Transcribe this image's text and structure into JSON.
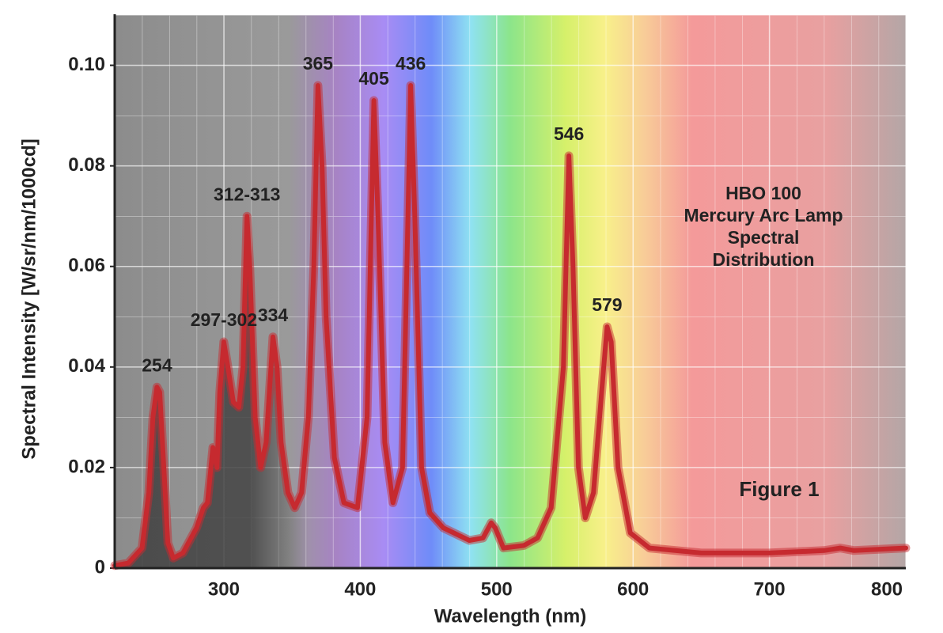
{
  "chart_data": {
    "type": "line",
    "x_label": "Wavelength (nm)",
    "y_label": "Spectral Intensity [W/sr/nm/1000cd]",
    "note": [
      "HBO 100",
      "Mercury Arc Lamp",
      "Spectral",
      "Distribution"
    ],
    "figure_label": "Figure 1",
    "xlim": [
      220,
      800
    ],
    "ylim": [
      0,
      0.11
    ],
    "xticks": [
      300,
      400,
      500,
      600,
      700,
      800
    ],
    "yticks": [
      0,
      0.02,
      0.04,
      0.06,
      0.08,
      {
        "value": 0.1,
        "label": "0.10"
      }
    ],
    "grid": true,
    "x": [
      220,
      230,
      240,
      245,
      248,
      251,
      253,
      256,
      259,
      263,
      270,
      280,
      285,
      288,
      292,
      295,
      297,
      300,
      303,
      307,
      311,
      314,
      317,
      319,
      323,
      327,
      331,
      336,
      339,
      342,
      347,
      352,
      357,
      362,
      366,
      369,
      372,
      375,
      381,
      388,
      398,
      405,
      410,
      413,
      418,
      424,
      431,
      435,
      437,
      440,
      445,
      451,
      461,
      480,
      490,
      496,
      499,
      505,
      520,
      530,
      540,
      549,
      553,
      556,
      560,
      565,
      571,
      577,
      581,
      584,
      589,
      598,
      612,
      650,
      700,
      740,
      752,
      762,
      800
    ],
    "series": [
      {
        "name": "HBO 100",
        "color": "#c62a2f",
        "values": [
          0.0005,
          0.001,
          0.004,
          0.015,
          0.03,
          0.036,
          0.035,
          0.02,
          0.005,
          0.002,
          0.003,
          0.008,
          0.012,
          0.013,
          0.024,
          0.02,
          0.035,
          0.045,
          0.04,
          0.033,
          0.032,
          0.04,
          0.07,
          0.06,
          0.03,
          0.02,
          0.025,
          0.046,
          0.04,
          0.025,
          0.015,
          0.012,
          0.015,
          0.03,
          0.06,
          0.096,
          0.08,
          0.05,
          0.022,
          0.013,
          0.012,
          0.03,
          0.093,
          0.07,
          0.025,
          0.013,
          0.02,
          0.07,
          0.096,
          0.07,
          0.02,
          0.011,
          0.008,
          0.0055,
          0.006,
          0.009,
          0.008,
          0.004,
          0.0045,
          0.006,
          0.012,
          0.04,
          0.082,
          0.06,
          0.02,
          0.01,
          0.015,
          0.035,
          0.048,
          0.045,
          0.02,
          0.007,
          0.004,
          0.003,
          0.003,
          0.0035,
          0.004,
          0.0035,
          0.004
        ]
      }
    ],
    "annotations": [
      {
        "text": "254",
        "x": 251,
        "y": 0.036
      },
      {
        "text": "297-302",
        "x": 300,
        "y": 0.045
      },
      {
        "text": "312-313",
        "x": 317,
        "y": 0.07
      },
      {
        "text": "334",
        "x": 336,
        "y": 0.046
      },
      {
        "text": "365",
        "x": 369,
        "y": 0.096
      },
      {
        "text": "405",
        "x": 410,
        "y": 0.093
      },
      {
        "text": "436",
        "x": 437,
        "y": 0.096
      },
      {
        "text": "546",
        "x": 553,
        "y": 0.082
      },
      {
        "text": "579",
        "x": 581,
        "y": 0.048
      }
    ]
  }
}
